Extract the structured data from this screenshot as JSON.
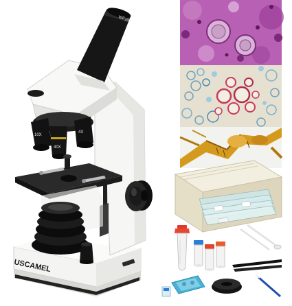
{
  "product": {
    "brand_label": "USCAMEL",
    "eyepiece_label": "WF10X",
    "objective_labels": [
      "10X",
      "40X",
      "4X"
    ]
  },
  "colors": {
    "background": "#ffffff",
    "body_white": "#f4f4f2",
    "body_shadow": "#cfcfcc",
    "black_parts": "#161616",
    "slide_box": "#ebe6d4",
    "pipette_red": "#e0452c",
    "vial_blue": "#2c7fd6",
    "petri_blue": "#3aa7c9"
  },
  "inset_images": [
    {
      "subject": "stained-tissue-cells",
      "palette": "purple"
    },
    {
      "subject": "plant-stem-cross-section",
      "palette": "blue-red"
    },
    {
      "subject": "insect-leg",
      "palette": "amber"
    }
  ],
  "accessories": [
    "slide-box",
    "prepared-slides",
    "sample-tube",
    "vials",
    "pipettes",
    "tweezers",
    "petri-dish",
    "phone-adapter",
    "cover-slips"
  ]
}
